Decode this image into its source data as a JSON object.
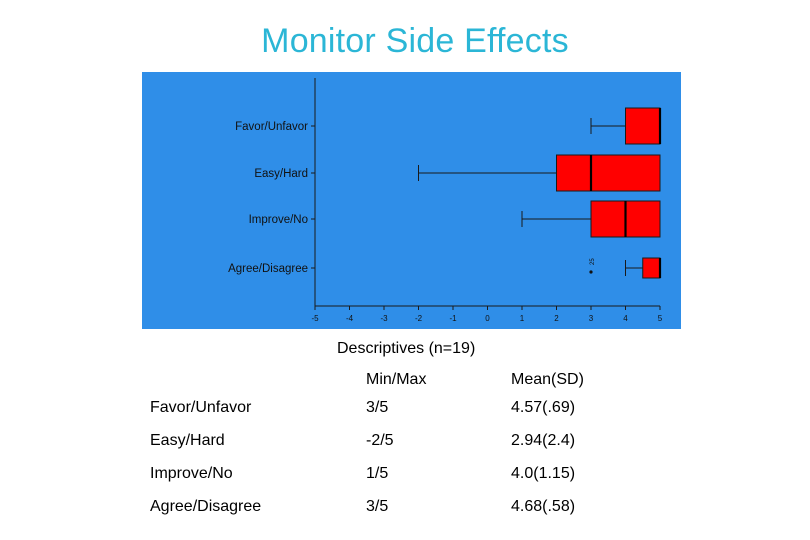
{
  "slide": {
    "title": "Monitor Side Effects"
  },
  "chart_data": {
    "type": "boxplot",
    "orientation": "horizontal",
    "categories": [
      "Favor/Unfavor",
      "Easy/Hard",
      "Improve/No",
      "Agree/Disagree"
    ],
    "boxes": [
      {
        "name": "Favor/Unfavor",
        "min": 3,
        "q1": 4,
        "median": 5,
        "q3": 5,
        "max": 5,
        "outliers": []
      },
      {
        "name": "Easy/Hard",
        "min": -2,
        "q1": 2,
        "median": 3,
        "q3": 5,
        "max": 5,
        "outliers": []
      },
      {
        "name": "Improve/No",
        "min": 1,
        "q1": 3,
        "median": 4,
        "q3": 5,
        "max": 5,
        "outliers": []
      },
      {
        "name": "Agree/Disagree",
        "min": 4,
        "q1": 4.5,
        "median": 5,
        "q3": 5,
        "max": 5,
        "outliers": [
          {
            "value": 3,
            "label": "25"
          }
        ]
      }
    ],
    "x_ticks": [
      "-5",
      "-4",
      "-3",
      "-2",
      "-1",
      "0",
      "1",
      "2",
      "3",
      "4",
      "5"
    ],
    "xlim": [
      -5,
      5
    ],
    "background_color": "#2f8ee8",
    "box_color": "#ff0000",
    "grid": false
  },
  "descriptives": {
    "caption": "Descriptives (n=19)",
    "columns": [
      "",
      "Min/Max",
      "Mean(SD)"
    ],
    "rows": [
      [
        "Favor/Unfavor",
        "3/5",
        "4.57(.69)"
      ],
      [
        "Easy/Hard",
        "-2/5",
        "2.94(2.4)"
      ],
      [
        "Improve/No",
        "1/5",
        "4.0(1.15)"
      ],
      [
        "Agree/Disagree",
        "3/5",
        "4.68(.58)"
      ]
    ]
  }
}
